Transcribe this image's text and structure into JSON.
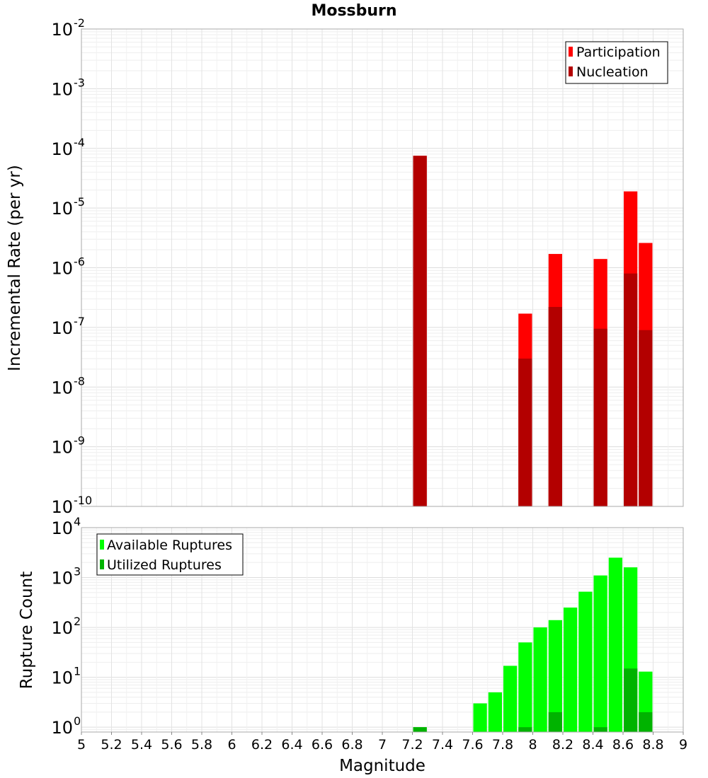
{
  "chart_data": [
    {
      "type": "bar",
      "title": "Mossburn",
      "ylabel": "Incremental Rate (per yr)",
      "xlabel": "",
      "yscale": "log",
      "ylim": [
        1e-10,
        0.01
      ],
      "xlim": [
        5,
        9
      ],
      "grid": true,
      "legend_position": "top-right",
      "y_tick_exponents": [
        "-10",
        "-9",
        "-8",
        "-7",
        "-6",
        "-5",
        "-4",
        "-3",
        "-2"
      ],
      "bin_width": 0.1,
      "series": [
        {
          "name": "Participation",
          "color": "#ff0000",
          "x": [
            7.25,
            7.95,
            8.15,
            8.45,
            8.65,
            8.75
          ],
          "values": [
            7.5e-05,
            1.7e-07,
            1.7e-06,
            1.4e-06,
            1.9e-05,
            2.6e-06
          ]
        },
        {
          "name": "Nucleation",
          "color": "#b30000",
          "x": [
            7.25,
            7.95,
            8.15,
            8.45,
            8.65,
            8.75
          ],
          "values": [
            7.5e-05,
            3e-08,
            2.2e-07,
            9.5e-08,
            8e-07,
            9e-08
          ]
        }
      ]
    },
    {
      "type": "bar",
      "title": "",
      "ylabel": "Rupture Count",
      "xlabel": "Magnitude",
      "yscale": "log",
      "ylim": [
        0.8,
        10000
      ],
      "xlim": [
        5,
        9
      ],
      "grid": true,
      "legend_position": "top-left",
      "x_tick_labels": [
        "5",
        "5.2",
        "5.4",
        "5.6",
        "5.8",
        "6",
        "6.2",
        "6.4",
        "6.6",
        "6.8",
        "7",
        "7.2",
        "7.4",
        "7.6",
        "7.8",
        "8",
        "8.2",
        "8.4",
        "8.6",
        "8.8",
        "9"
      ],
      "y_tick_exponents": [
        "0",
        "1",
        "2",
        "3",
        "4"
      ],
      "bin_width": 0.1,
      "series": [
        {
          "name": "Available Ruptures",
          "color": "#00ff00",
          "x": [
            7.25,
            7.65,
            7.75,
            7.85,
            7.95,
            8.05,
            8.15,
            8.25,
            8.35,
            8.45,
            8.55,
            8.65,
            8.75
          ],
          "values": [
            1,
            3,
            5,
            17,
            50,
            100,
            140,
            250,
            520,
            1100,
            2500,
            1600,
            13
          ]
        },
        {
          "name": "Utilized Ruptures",
          "color": "#00b300",
          "x": [
            7.25,
            7.95,
            8.15,
            8.45,
            8.65,
            8.75
          ],
          "values": [
            1,
            1,
            2,
            1,
            15,
            2
          ]
        }
      ]
    }
  ]
}
